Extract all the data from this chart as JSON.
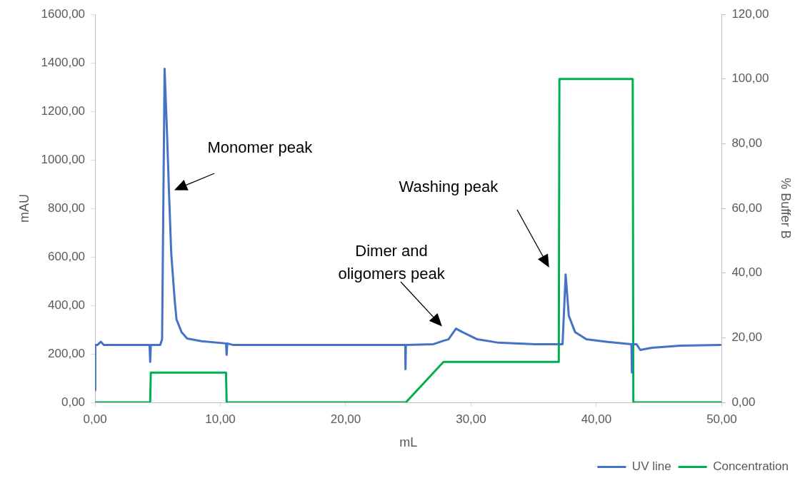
{
  "chart_data": {
    "type": "line",
    "xlabel": "mL",
    "ylabel": "mAU",
    "y2label": "% Buffer B",
    "legend": "bottom right",
    "grid": false,
    "marker": "none",
    "line_style": "solid",
    "xlim": [
      0,
      50
    ],
    "xticks": [
      {
        "value": 0,
        "label": "0,00"
      },
      {
        "value": 10,
        "label": "10,00"
      },
      {
        "value": 20,
        "label": "20,00"
      },
      {
        "value": 30,
        "label": "30,00"
      },
      {
        "value": 40,
        "label": "40,00"
      },
      {
        "value": 50,
        "label": "50,00"
      }
    ],
    "ylim": [
      0,
      1600
    ],
    "yticks": [
      {
        "value": 0,
        "label": "0,00"
      },
      {
        "value": 200,
        "label": "200,00"
      },
      {
        "value": 400,
        "label": "400,00"
      },
      {
        "value": 600,
        "label": "600,00"
      },
      {
        "value": 800,
        "label": "800,00"
      },
      {
        "value": 1000,
        "label": "1000,00"
      },
      {
        "value": 1200,
        "label": "1200,00"
      },
      {
        "value": 1400,
        "label": "1400,00"
      },
      {
        "value": 1600,
        "label": "1600,00"
      }
    ],
    "y2lim": [
      0,
      120
    ],
    "y2ticks": [
      {
        "value": 0,
        "label": "0,00"
      },
      {
        "value": 20,
        "label": "20,00"
      },
      {
        "value": 40,
        "label": "40,00"
      },
      {
        "value": 60,
        "label": "60,00"
      },
      {
        "value": 80,
        "label": "80,00"
      },
      {
        "value": 100,
        "label": "100,00"
      },
      {
        "value": 120,
        "label": "120,00"
      }
    ],
    "series": [
      {
        "name": "UV line",
        "color": "#4472c4",
        "x": [
          0,
          0.02,
          0.2,
          0.46,
          0.7,
          4.35,
          4.4,
          4.45,
          5.2,
          5.35,
          5.55,
          5.75,
          5.9,
          6.08,
          6.3,
          6.35,
          6.5,
          6.9,
          7.35,
          8.5,
          10.45,
          10.5,
          10.55,
          11,
          24.75,
          24.77,
          24.8,
          27,
          27.8,
          28.2,
          28.8,
          29.3,
          30.5,
          32.2,
          35.1,
          37.3,
          37.55,
          37.8,
          38.3,
          39.2,
          40.9,
          42.8,
          42.82,
          42.85,
          43.2,
          43.5,
          44.4,
          46.7,
          49.9
        ],
        "values": [
          50,
          237,
          237,
          250,
          237,
          237,
          167,
          237,
          237,
          260,
          1375,
          1100,
          869,
          614,
          460,
          424,
          342,
          290,
          263,
          252,
          243,
          196,
          243,
          237,
          237,
          137,
          237,
          240,
          254,
          260,
          304,
          290,
          260,
          246,
          240,
          240,
          527,
          357,
          290,
          260,
          249,
          240,
          123,
          240,
          240,
          216,
          225,
          234,
          237
        ]
      },
      {
        "name": "Concentration",
        "color": "#00b050",
        "axis": "y2",
        "x": [
          0,
          4.4,
          4.45,
          10.45,
          10.5,
          24.8,
          27.8,
          37,
          37.05,
          42.9,
          42.95,
          50
        ],
        "values": [
          0,
          0,
          9.2,
          9.2,
          0,
          0,
          12.5,
          12.5,
          100,
          100,
          0,
          0
        ]
      }
    ],
    "annotations": [
      "Monomer peak",
      "Dimer and\noligomers peak",
      "Washing peak"
    ]
  }
}
